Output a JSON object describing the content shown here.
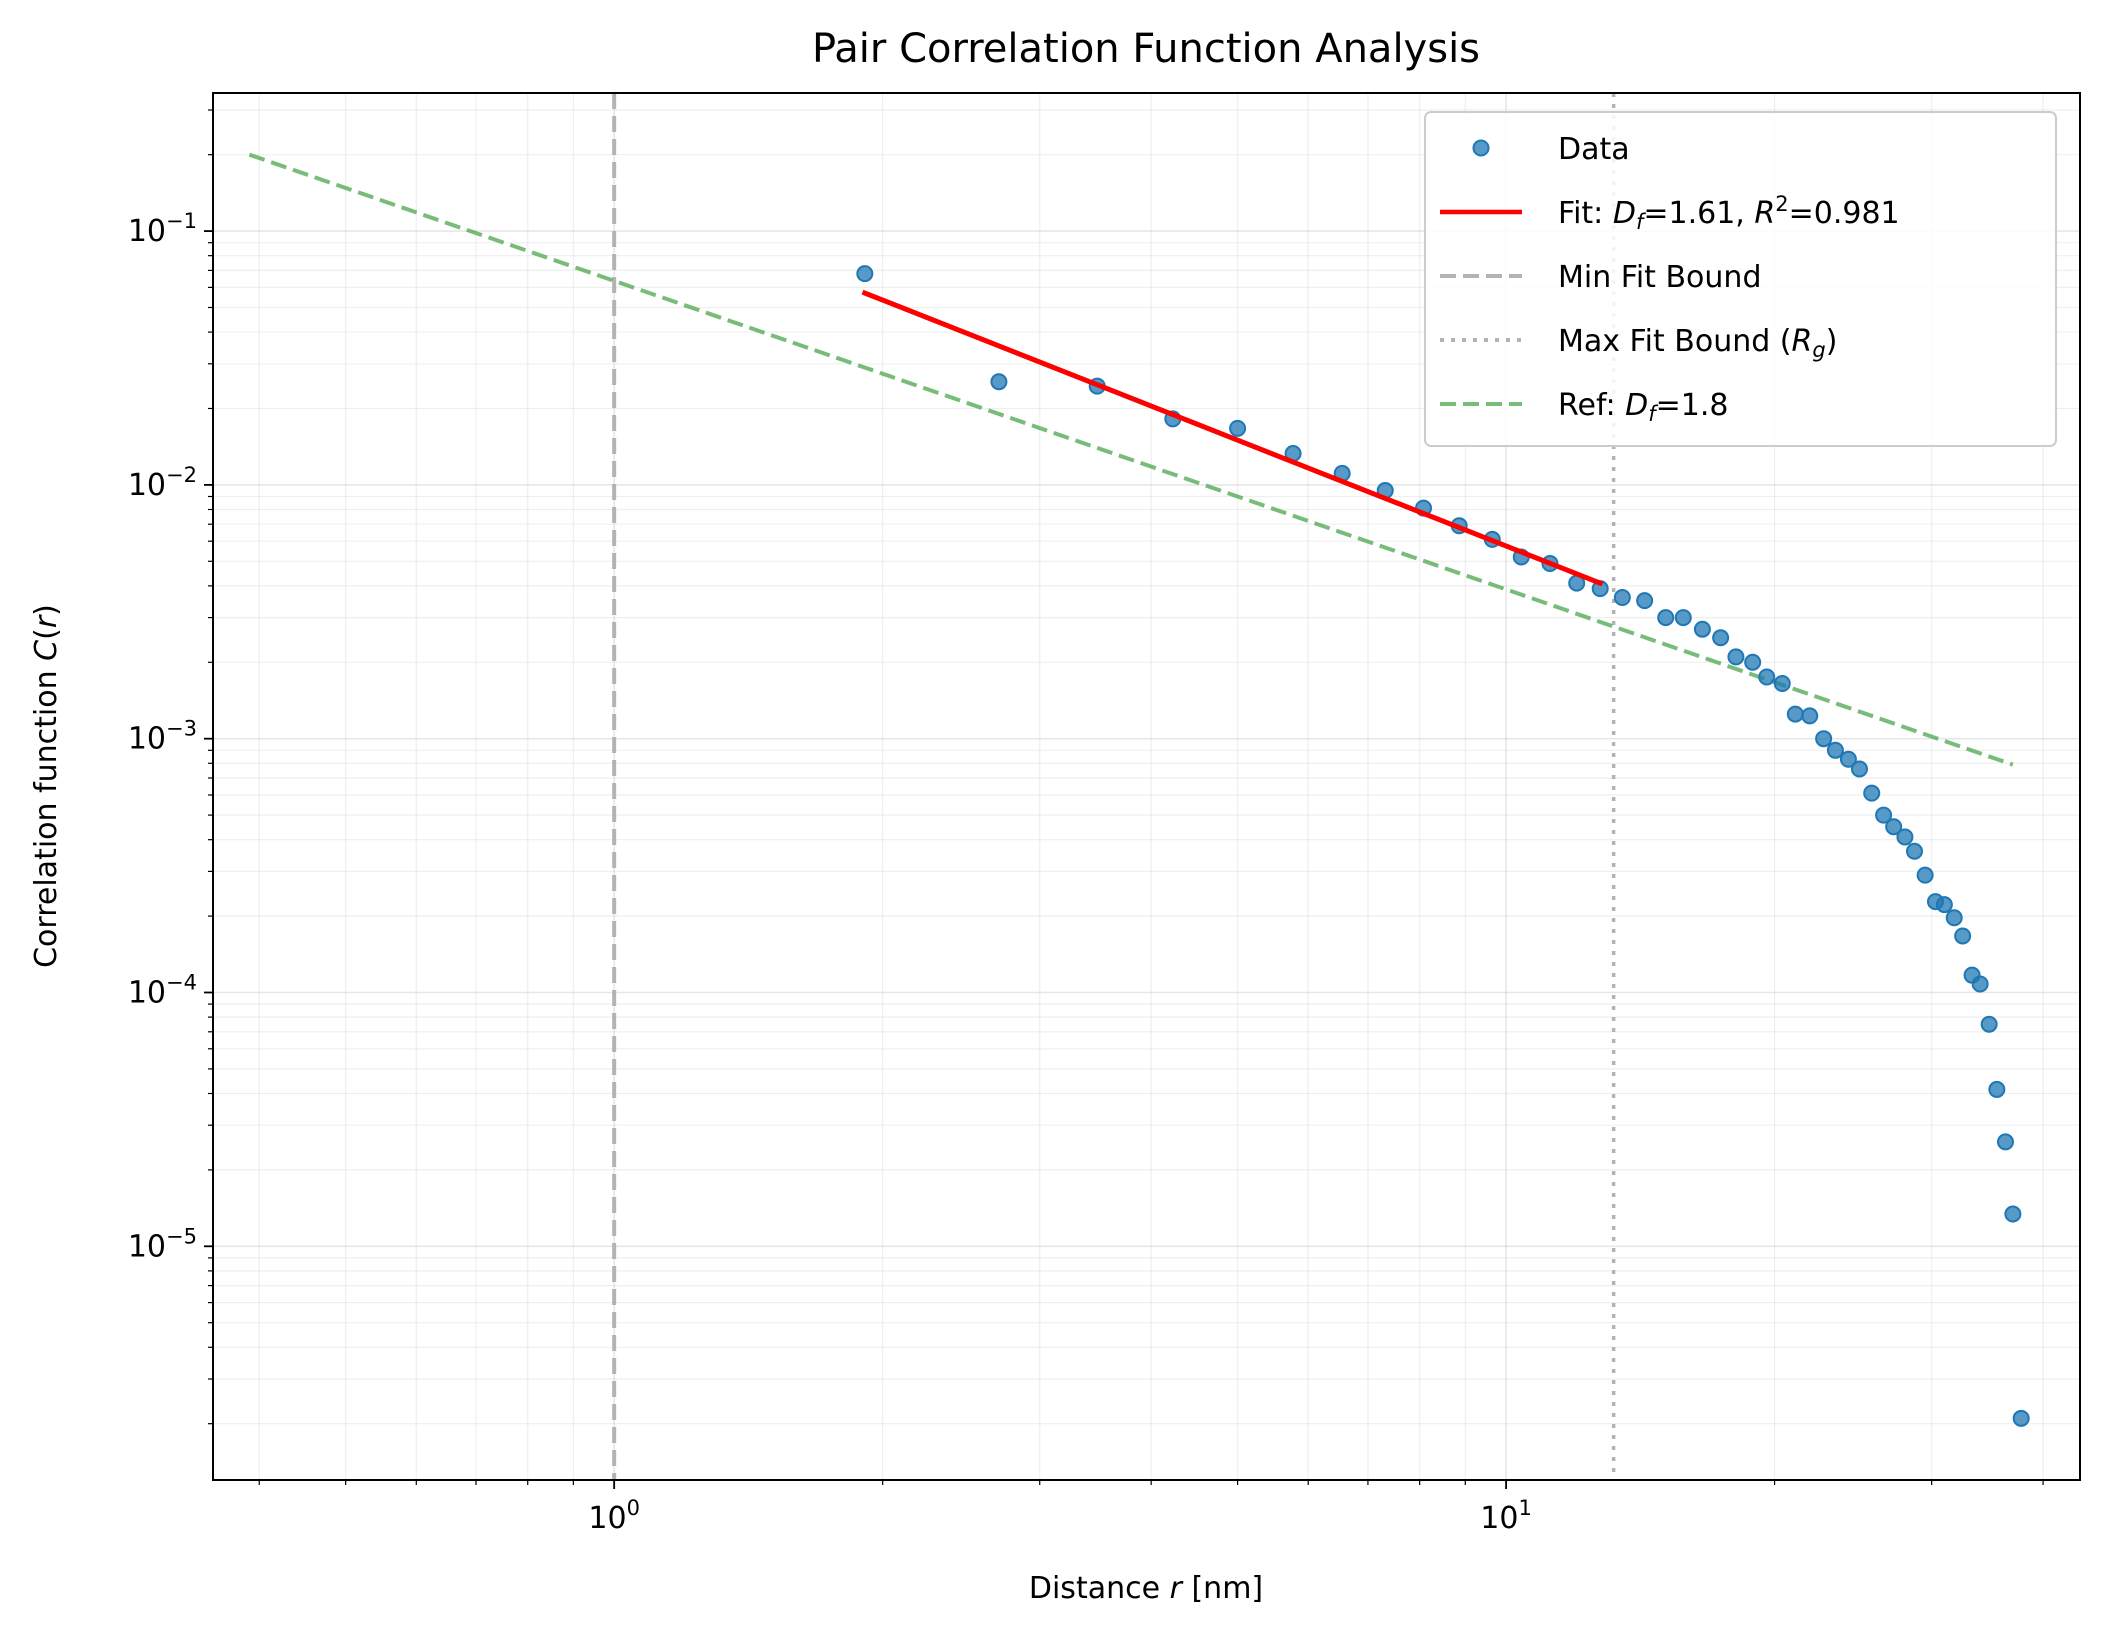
{
  "chart_data": {
    "type": "scatter",
    "title": "Pair Correlation Function Analysis",
    "xlabel": {
      "pre": "Distance ",
      "var": "r",
      "post": " [nm]"
    },
    "ylabel": {
      "pre": "Correlation function ",
      "var": "C",
      "post": "(",
      "var2": "r",
      "end": ")"
    },
    "xscale": "log",
    "yscale": "log",
    "xlim": [
      0.355,
      44.0
    ],
    "ylim": [
      1.2e-06,
      0.35
    ],
    "x_ticks": [
      {
        "value": 1,
        "base": "10",
        "exp": "0"
      },
      {
        "value": 10,
        "base": "10",
        "exp": "1"
      }
    ],
    "y_ticks": [
      {
        "value": 0.1,
        "base": "10",
        "exp": "−1"
      },
      {
        "value": 0.01,
        "base": "10",
        "exp": "−2"
      },
      {
        "value": 0.001,
        "base": "10",
        "exp": "−3"
      },
      {
        "value": 0.0001,
        "base": "10",
        "exp": "−4"
      },
      {
        "value": 1e-05,
        "base": "10",
        "exp": "−5"
      }
    ],
    "grid": true,
    "legend_position": "top-right",
    "colors": {
      "data": "#1f77b4",
      "fit": "#ff0000",
      "min_bound": "#b3b3b3",
      "max_bound": "#b3b3b3",
      "reference": "#4ca64c"
    },
    "series": [
      {
        "name": "Data",
        "kind": "scatter",
        "points": [
          [
            1.91,
            0.068
          ],
          [
            2.7,
            0.0255
          ],
          [
            3.48,
            0.0245
          ],
          [
            4.23,
            0.0182
          ],
          [
            5.0,
            0.0167
          ],
          [
            5.77,
            0.0133
          ],
          [
            6.55,
            0.0111
          ],
          [
            7.32,
            0.0095
          ],
          [
            8.08,
            0.0081
          ],
          [
            8.86,
            0.0069
          ],
          [
            9.65,
            0.0061
          ],
          [
            10.4,
            0.0052
          ],
          [
            11.2,
            0.0049
          ],
          [
            12.0,
            0.0041
          ],
          [
            12.75,
            0.0039
          ],
          [
            13.5,
            0.0036
          ],
          [
            14.3,
            0.0035
          ],
          [
            15.1,
            0.003
          ],
          [
            15.8,
            0.003
          ],
          [
            16.6,
            0.0027
          ],
          [
            17.4,
            0.0025
          ],
          [
            18.1,
            0.0021
          ],
          [
            18.9,
            0.002
          ],
          [
            19.6,
            0.00175
          ],
          [
            20.4,
            0.00165
          ],
          [
            21.1,
            0.00125
          ],
          [
            21.9,
            0.00123
          ],
          [
            22.7,
            0.001
          ],
          [
            23.4,
            0.0009
          ],
          [
            24.2,
            0.00083
          ],
          [
            24.9,
            0.00076
          ],
          [
            25.7,
            0.00061
          ],
          [
            26.5,
            0.0005
          ],
          [
            27.2,
            0.00045
          ],
          [
            28.0,
            0.00041
          ],
          [
            28.7,
            0.00036
          ],
          [
            29.5,
            0.00029
          ],
          [
            30.3,
            0.000228
          ],
          [
            31.0,
            0.000222
          ],
          [
            31.8,
            0.000197
          ],
          [
            32.5,
            0.000167
          ],
          [
            33.3,
            0.000117
          ],
          [
            34.0,
            0.000108
          ],
          [
            34.8,
            7.5e-05
          ],
          [
            35.5,
            4.15e-05
          ],
          [
            36.3,
            2.58e-05
          ],
          [
            37.0,
            1.34e-05
          ],
          [
            37.8,
            2.1e-06
          ]
        ]
      },
      {
        "name": {
          "pre": "Fit: ",
          "sym1": "D",
          "sub1": "f",
          "mid": "=1.61, ",
          "sym2": "R",
          "sup2": "2",
          "post": "=0.981"
        },
        "kind": "line",
        "points": [
          [
            1.91,
            0.057
          ],
          [
            12.75,
            0.0041
          ]
        ]
      },
      {
        "name": "Min Fit Bound",
        "kind": "vline",
        "x": 1.0
      },
      {
        "name": {
          "pre": "Max Fit Bound (",
          "sym": "R",
          "sub": "g",
          "post": ")"
        },
        "kind": "vline",
        "x": 13.2
      },
      {
        "name": {
          "pre": "Ref: ",
          "sym": "D",
          "sub": "f",
          "post": "=1.8"
        },
        "kind": "line",
        "points": [
          [
            0.39,
            0.2
          ],
          [
            37.0,
            0.00079
          ]
        ]
      }
    ]
  }
}
